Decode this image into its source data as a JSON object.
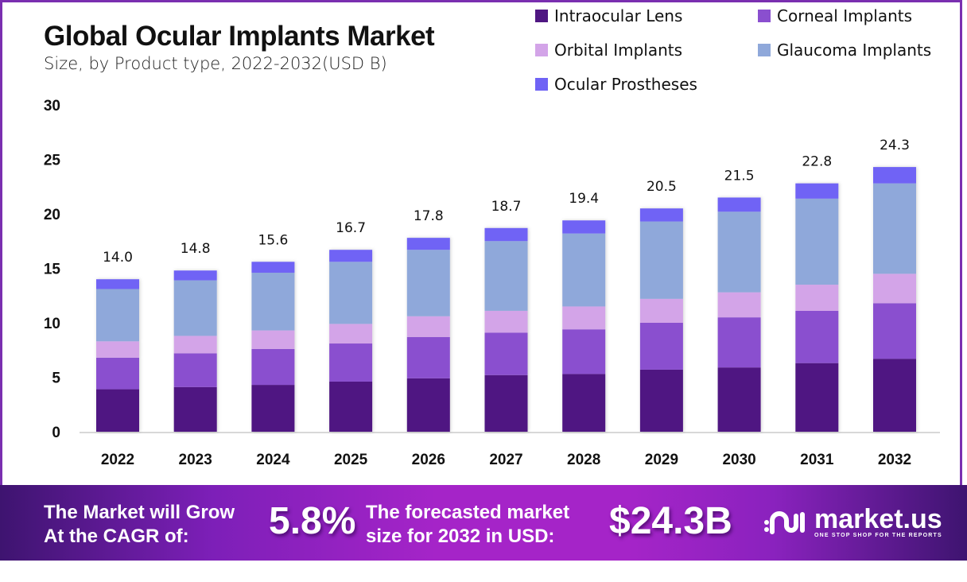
{
  "header": {
    "title": "Global Ocular Implants Market",
    "subtitle": "Size, by Product type, 2022-2032(USD B)"
  },
  "legend": [
    {
      "name": "Intraocular Lens",
      "color": "#4f1782"
    },
    {
      "name": "Corneal Implants",
      "color": "#8a4fcf"
    },
    {
      "name": "Orbital Implants",
      "color": "#d3a4e8"
    },
    {
      "name": "Glaucoma Implants",
      "color": "#8fa8da"
    },
    {
      "name": "Ocular Prostheses",
      "color": "#6f63f5"
    }
  ],
  "chart_data": {
    "type": "bar",
    "stacked": true,
    "title": "Global Ocular Implants Market",
    "subtitle": "Size, by Product type, 2022-2032(USD B)",
    "xlabel": "",
    "ylabel": "",
    "ylim": [
      0,
      30
    ],
    "yticks": [
      0,
      5,
      10,
      15,
      20,
      25,
      30
    ],
    "grid": false,
    "legend_position": "top-right",
    "categories": [
      "2022",
      "2023",
      "2024",
      "2025",
      "2026",
      "2027",
      "2028",
      "2029",
      "2030",
      "2031",
      "2032"
    ],
    "series": [
      {
        "name": "Intraocular Lens",
        "color": "#4f1782",
        "values": [
          3.9,
          4.1,
          4.3,
          4.6,
          4.9,
          5.2,
          5.3,
          5.7,
          5.9,
          6.3,
          6.7
        ]
      },
      {
        "name": "Corneal Implants",
        "color": "#8a4fcf",
        "values": [
          2.9,
          3.1,
          3.3,
          3.5,
          3.8,
          3.9,
          4.1,
          4.3,
          4.6,
          4.8,
          5.1
        ]
      },
      {
        "name": "Orbital Implants",
        "color": "#d3a4e8",
        "values": [
          1.5,
          1.6,
          1.7,
          1.8,
          1.9,
          2.0,
          2.1,
          2.2,
          2.3,
          2.4,
          2.7
        ]
      },
      {
        "name": "Glaucoma Implants",
        "color": "#8fa8da",
        "values": [
          4.8,
          5.1,
          5.3,
          5.7,
          6.1,
          6.4,
          6.7,
          7.1,
          7.4,
          7.9,
          8.3
        ]
      },
      {
        "name": "Ocular Prostheses",
        "color": "#6f63f5",
        "values": [
          0.9,
          0.9,
          1.0,
          1.1,
          1.1,
          1.2,
          1.2,
          1.2,
          1.3,
          1.4,
          1.5
        ]
      }
    ],
    "totals": [
      14.0,
      14.8,
      15.6,
      16.7,
      17.8,
      18.7,
      19.4,
      20.5,
      21.5,
      22.8,
      24.3
    ],
    "total_labels": [
      "14.0",
      "14.8",
      "15.6",
      "16.7",
      "17.8",
      "18.7",
      "19.4",
      "20.5",
      "21.5",
      "22.8",
      "24.3"
    ]
  },
  "banner": {
    "cagr_text_line1": "The Market will Grow",
    "cagr_text_line2": "At the CAGR of:",
    "cagr_value": "5.8%",
    "forecast_text_line1": "The forecasted market",
    "forecast_text_line2": "size for 2032 in USD:",
    "forecast_value": "$24.3B",
    "brand_name": "market.us",
    "brand_tagline": "ONE STOP SHOP FOR THE REPORTS"
  }
}
